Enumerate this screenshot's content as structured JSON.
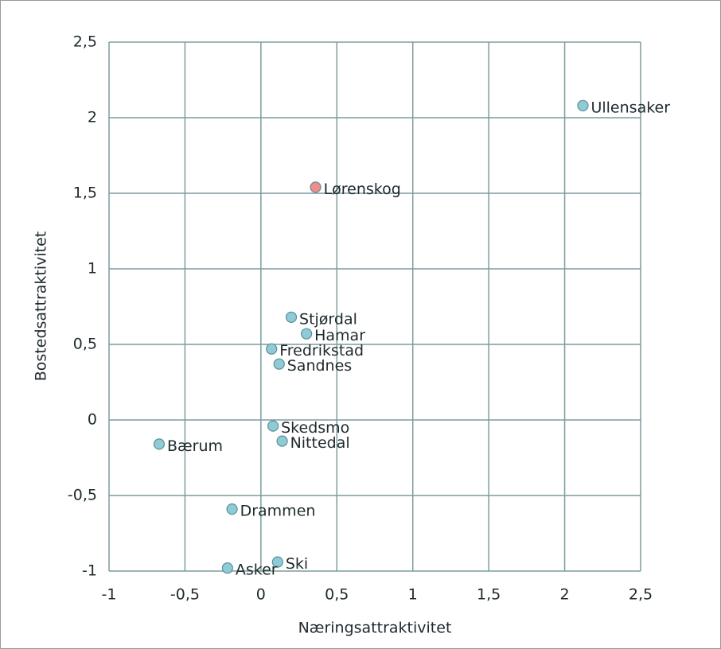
{
  "chart_data": {
    "type": "scatter",
    "xlabel": "Næringsattraktivitet",
    "ylabel": "Bostedsattraktivitet",
    "labels": [
      "Ullensaker",
      "Lørenskog",
      "Stjørdal",
      "Hamar",
      "Fredrikstad",
      "Sandnes",
      "Skedsmo",
      "Nittedal",
      "Bærum",
      "Drammen",
      "Ski",
      "Asker"
    ],
    "x": [
      2.12,
      0.36,
      0.2,
      0.3,
      0.07,
      0.12,
      0.08,
      0.14,
      -0.67,
      -0.19,
      0.11,
      -0.22
    ],
    "y": [
      2.08,
      1.54,
      0.68,
      0.57,
      0.47,
      0.37,
      -0.04,
      -0.14,
      -0.16,
      -0.59,
      -0.94,
      -0.98
    ],
    "colors": [
      "#8ecbd6",
      "#f08c8c",
      "#8ecbd6",
      "#8ecbd6",
      "#8ecbd6",
      "#8ecbd6",
      "#8ecbd6",
      "#8ecbd6",
      "#8ecbd6",
      "#8ecbd6",
      "#8ecbd6",
      "#8ecbd6"
    ],
    "xlim": [
      -1,
      2.5
    ],
    "ylim": [
      -1,
      2.5
    ],
    "xticks": [
      -1,
      {
        "value": -0.5,
        "label": "-0,5"
      },
      0,
      {
        "value": 0.5,
        "label": "0,5"
      },
      1,
      {
        "value": 1.5,
        "label": "1,5"
      },
      2,
      {
        "value": 2.5,
        "label": "2,5"
      }
    ],
    "yticks": [
      -1,
      {
        "value": -0.5,
        "label": "-0,5"
      },
      0,
      {
        "value": 0.5,
        "label": "0,5"
      },
      1,
      {
        "value": 1.5,
        "label": "1,5"
      },
      2,
      {
        "value": 2.5,
        "label": "2,5"
      }
    ],
    "grid": true
  }
}
